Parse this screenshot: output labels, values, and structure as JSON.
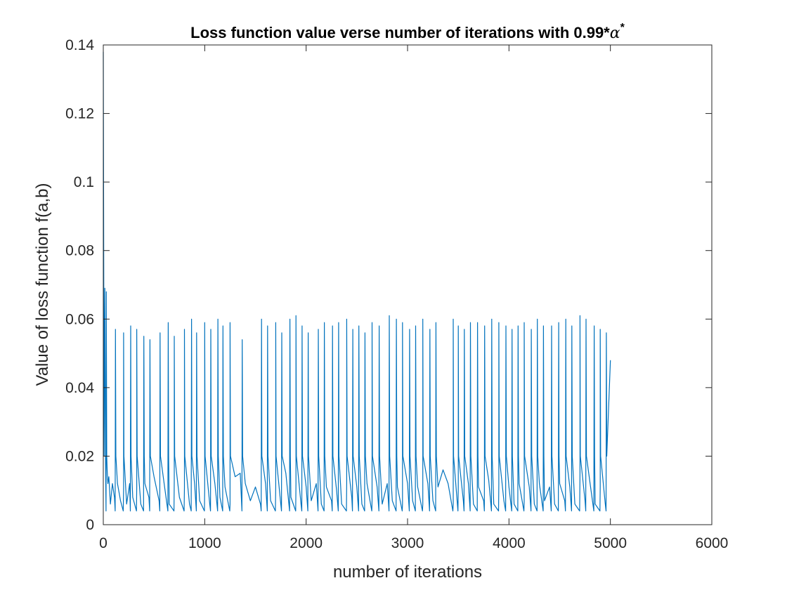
{
  "chart_data": {
    "type": "line",
    "title": "Loss function value verse number of iterations with 0.99*",
    "title_symbol": "α",
    "title_superscript": "*",
    "xlabel": "number of iterations",
    "ylabel": "Value of loss function f(a,b)",
    "xlim": [
      0,
      6000
    ],
    "ylim": [
      0,
      0.14
    ],
    "xticks": [
      0,
      1000,
      2000,
      3000,
      4000,
      5000,
      6000
    ],
    "xtick_labels": [
      "0",
      "1000",
      "2000",
      "3000",
      "4000",
      "5000",
      "6000"
    ],
    "yticks": [
      0,
      0.02,
      0.04,
      0.06,
      0.08,
      0.1,
      0.12,
      0.14
    ],
    "ytick_labels": [
      "0",
      "0.02",
      "0.04",
      "0.06",
      "0.08",
      "0.1",
      "0.12",
      "0.14"
    ],
    "grid": false,
    "legend": "none",
    "series_color": "#0072BD",
    "series": [
      {
        "x": [
          0,
          8,
          15,
          22,
          30,
          38,
          45,
          55,
          70,
          90,
          110,
          140,
          170,
          200,
          230,
          260,
          290,
          330,
          370,
          410,
          450,
          500,
          550,
          600,
          650,
          700,
          750,
          800,
          850,
          900,
          950,
          1000,
          1050,
          1100,
          1150,
          1200,
          1250,
          1300,
          1350,
          1400,
          1450,
          1500,
          1550,
          1600,
          1650,
          1700,
          1750,
          1800,
          1850,
          1900,
          1950,
          2000,
          2050,
          2100,
          2150,
          2200,
          2250,
          2300,
          2350,
          2400,
          2450,
          2500,
          2550,
          2600,
          2650,
          2700,
          2750,
          2800,
          2850,
          2900,
          2950,
          3000,
          3050,
          3100,
          3150,
          3200,
          3250,
          3300,
          3350,
          3400,
          3450,
          3500,
          3550,
          3600,
          3650,
          3700,
          3750,
          3800,
          3850,
          3900,
          3950,
          4000,
          4050,
          4100,
          4150,
          4200,
          4250,
          4300,
          4350,
          4400,
          4450,
          4500,
          4550,
          4600,
          4650,
          4700,
          4750,
          4800,
          4850,
          4900,
          4950,
          5000
        ],
        "y": [
          0.138,
          0.02,
          0.069,
          0.018,
          0.068,
          0.016,
          0.012,
          0.014,
          0.006,
          0.012,
          0.008,
          0.012,
          0.007,
          0.011,
          0.006,
          0.012,
          0.008,
          0.011,
          0.006,
          0.012,
          0.008,
          0.014,
          0.007,
          0.012,
          0.006,
          0.013,
          0.008,
          0.011,
          0.006,
          0.012,
          0.007,
          0.01,
          0.006,
          0.012,
          0.008,
          0.011,
          0.006,
          0.014,
          0.015,
          0.012,
          0.007,
          0.011,
          0.006,
          0.012,
          0.007,
          0.011,
          0.006,
          0.015,
          0.008,
          0.012,
          0.006,
          0.011,
          0.007,
          0.012,
          0.006,
          0.011,
          0.007,
          0.01,
          0.006,
          0.012,
          0.008,
          0.011,
          0.006,
          0.012,
          0.007,
          0.011,
          0.006,
          0.012,
          0.007,
          0.011,
          0.006,
          0.012,
          0.007,
          0.011,
          0.006,
          0.012,
          0.007,
          0.011,
          0.016,
          0.012,
          0.006,
          0.011,
          0.007,
          0.012,
          0.006,
          0.011,
          0.007,
          0.013,
          0.006,
          0.012,
          0.007,
          0.011,
          0.006,
          0.012,
          0.007,
          0.011,
          0.006,
          0.012,
          0.007,
          0.011,
          0.006,
          0.012,
          0.007,
          0.011,
          0.006,
          0.015,
          0.007,
          0.012,
          0.006,
          0.011,
          0.006,
          0.048
        ]
      }
    ],
    "spikes": {
      "x": [
        30,
        120,
        200,
        270,
        330,
        400,
        460,
        560,
        640,
        700,
        800,
        870,
        920,
        1000,
        1060,
        1130,
        1180,
        1250,
        1370,
        1560,
        1620,
        1700,
        1760,
        1840,
        1900,
        1960,
        2020,
        2120,
        2180,
        2260,
        2320,
        2400,
        2460,
        2520,
        2580,
        2650,
        2720,
        2820,
        2890,
        2950,
        3020,
        3080,
        3150,
        3220,
        3280,
        3450,
        3500,
        3560,
        3620,
        3690,
        3760,
        3830,
        3900,
        3970,
        4030,
        4090,
        4150,
        4220,
        4280,
        4340,
        4420,
        4490,
        4560,
        4620,
        4700,
        4760,
        4840,
        4900,
        4960
      ],
      "y": [
        0.065,
        0.057,
        0.056,
        0.058,
        0.057,
        0.055,
        0.054,
        0.056,
        0.059,
        0.055,
        0.057,
        0.06,
        0.056,
        0.059,
        0.057,
        0.06,
        0.058,
        0.059,
        0.054,
        0.06,
        0.058,
        0.059,
        0.056,
        0.06,
        0.061,
        0.058,
        0.056,
        0.057,
        0.059,
        0.058,
        0.059,
        0.06,
        0.057,
        0.058,
        0.056,
        0.059,
        0.058,
        0.061,
        0.06,
        0.059,
        0.057,
        0.058,
        0.06,
        0.057,
        0.059,
        0.06,
        0.058,
        0.057,
        0.059,
        0.059,
        0.058,
        0.06,
        0.059,
        0.058,
        0.057,
        0.058,
        0.059,
        0.057,
        0.06,
        0.058,
        0.058,
        0.059,
        0.06,
        0.058,
        0.061,
        0.06,
        0.058,
        0.057,
        0.056
      ]
    }
  }
}
